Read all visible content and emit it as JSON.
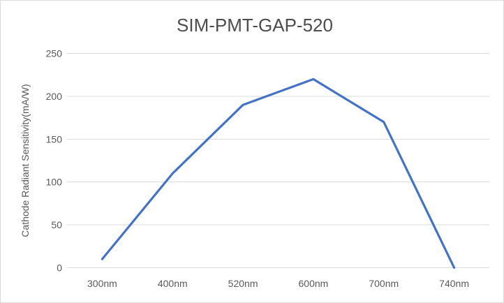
{
  "chart_data": {
    "type": "line",
    "title": "SIM-PMT-GAP-520",
    "xlabel": "",
    "ylabel": "Cathode Radiant Sensitivity(mA/W)",
    "categories": [
      "300nm",
      "400nm",
      "520nm",
      "600nm",
      "700nm",
      "740nm"
    ],
    "values": [
      10,
      110,
      190,
      220,
      170,
      0
    ],
    "y_ticks": [
      0,
      50,
      100,
      150,
      200,
      250
    ],
    "ylim": [
      0,
      250
    ],
    "grid": "horizontal",
    "legend_position": "none",
    "colors": {
      "line": "#4472C4",
      "gridline": "#D9D9D9",
      "tick_text": "#595959",
      "title_text": "#4D4D4D",
      "background": "#FFFFFF",
      "frame_border": "#D9D9D9"
    }
  }
}
